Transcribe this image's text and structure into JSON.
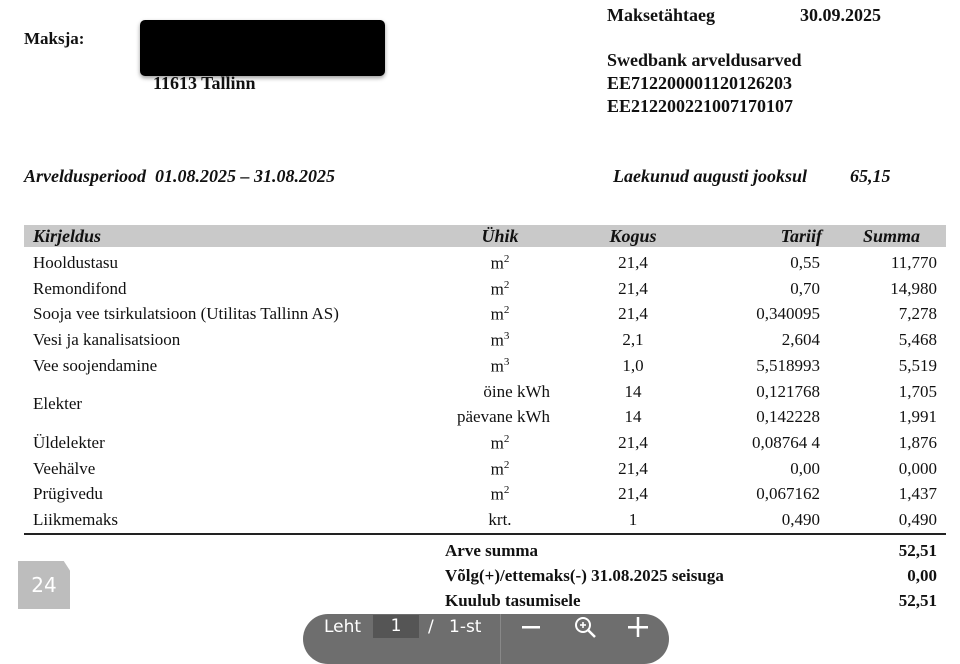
{
  "header": {
    "payer_label": "Maksja:",
    "payer_city": "11613 Tallinn",
    "due_label": "Maksetähtaeg",
    "due_date": "30.09.2025",
    "bank_label": "Swedbank arveldusarved",
    "iban1": "EE712200001120126203",
    "iban2": "EE212200221007170107",
    "period_label": "Arveldusperiood  01.08.2025 – 31.08.2025",
    "received_label": "Laekunud augusti jooksul",
    "received_value": "65,15"
  },
  "table": {
    "columns": [
      "Kirjeldus",
      "Ühik",
      "Kogus",
      "Tariif",
      "Summa"
    ],
    "rows": [
      {
        "desc": "Hooldustasu",
        "unit": "m",
        "sup": "2",
        "qty": "21,4",
        "tariff": "0,55",
        "sum": "11,770"
      },
      {
        "desc": "Remondifond",
        "unit": "m",
        "sup": "2",
        "qty": "21,4",
        "tariff": "0,70",
        "sum": "14,980"
      },
      {
        "desc": "Sooja vee tsirkulatsioon (Utilitas Tallinn AS)",
        "unit": "m",
        "sup": "2",
        "qty": "21,4",
        "tariff": "0,340095",
        "sum": "7,278"
      },
      {
        "desc": "Vesi ja kanalisatsioon",
        "unit": "m",
        "sup": "3",
        "qty": "2,1",
        "tariff": "2,604",
        "sum": "5,468"
      },
      {
        "desc": "Vee soojendamine",
        "unit": "m",
        "sup": "3",
        "qty": "1,0",
        "tariff": "5,518993",
        "sum": "5,519"
      }
    ],
    "elekter": {
      "desc": "Elekter",
      "sub": [
        {
          "unit": "öine kWh",
          "qty": "14",
          "tariff": "0,121768",
          "sum": "1,705"
        },
        {
          "unit": "päevane kWh",
          "qty": "14",
          "tariff": "0,142228",
          "sum": "1,991"
        }
      ]
    },
    "rows2": [
      {
        "desc": "Üldelekter",
        "unit": "m",
        "sup": "2",
        "qty": "21,4",
        "tariff": "0,08764 4",
        "sum": "1,876"
      },
      {
        "desc": "Veehälve",
        "unit": "m",
        "sup": "2",
        "qty": "21,4",
        "tariff": "0,00",
        "sum": "0,000"
      },
      {
        "desc": "Prügivedu",
        "unit": "m",
        "sup": "2",
        "qty": "21,4",
        "tariff": "0,067162",
        "sum": "1,437"
      },
      {
        "desc": "Liikmemaks",
        "unit": "krt.",
        "sup": "",
        "qty": "1",
        "tariff": "0,490",
        "sum": "0,490"
      }
    ]
  },
  "totals": [
    {
      "label": "Arve summa",
      "value": "52,51"
    },
    {
      "label": "Võlg(+)/ettemaks(-) 31.08.2025 seisuga",
      "value": "0,00"
    },
    {
      "label": "Kuulub tasumisele",
      "value": "52,51"
    }
  ],
  "viewer": {
    "page_badge": "24",
    "page_label": "Leht",
    "page_current": "1",
    "page_sep": "/",
    "page_total": "1-st"
  }
}
